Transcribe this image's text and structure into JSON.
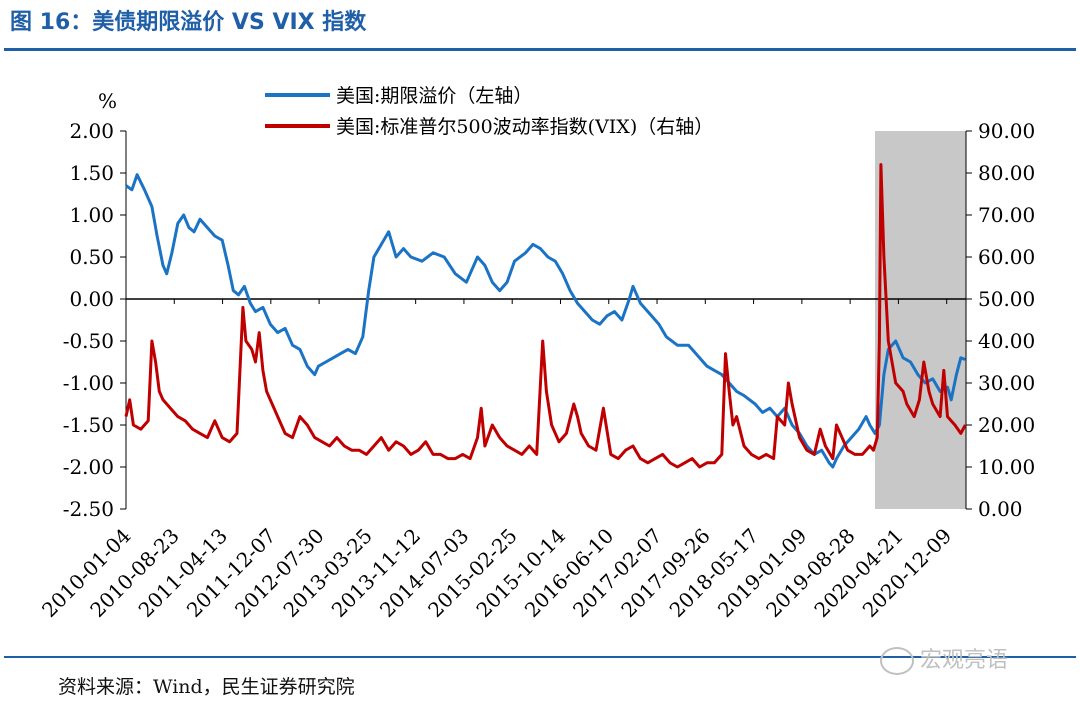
{
  "figure": {
    "title": "图 16：美债期限溢价 VS VIX 指数",
    "source": "资料来源：Wind，民生证券研究院",
    "watermark": "宏观亮语"
  },
  "chart_data": {
    "type": "line",
    "unit_label": "%",
    "y_left": {
      "min": -2.5,
      "max": 2.0,
      "ticks": [
        "2.00",
        "1.50",
        "1.00",
        "0.50",
        "0.00",
        "-0.50",
        "-1.00",
        "-1.50",
        "-2.00",
        "-2.50"
      ]
    },
    "y_right": {
      "min": 0,
      "max": 90,
      "ticks": [
        "90.00",
        "80.00",
        "70.00",
        "60.00",
        "50.00",
        "40.00",
        "30.00",
        "20.00",
        "10.00",
        "0.00"
      ]
    },
    "x_tick_labels": [
      "2010-01-04",
      "2010-08-23",
      "2011-04-13",
      "2011-12-07",
      "2012-07-30",
      "2013-03-25",
      "2013-11-12",
      "2014-07-03",
      "2015-02-25",
      "2015-10-14",
      "2016-06-10",
      "2017-02-07",
      "2017-09-26",
      "2018-05-17",
      "2019-01-09",
      "2019-08-28",
      "2020-04-21",
      "2020-12-09"
    ],
    "x_range": [
      2010.0,
      2021.35
    ],
    "shaded_region": [
      2020.12,
      2021.35
    ],
    "series": [
      {
        "name": "美国:期限溢价（左轴）",
        "axis": "left",
        "color": "#1a73c4",
        "points": [
          [
            2010.0,
            1.35
          ],
          [
            2010.08,
            1.3
          ],
          [
            2010.15,
            1.48
          ],
          [
            2010.25,
            1.3
          ],
          [
            2010.35,
            1.1
          ],
          [
            2010.42,
            0.75
          ],
          [
            2010.5,
            0.4
          ],
          [
            2010.55,
            0.3
          ],
          [
            2010.62,
            0.55
          ],
          [
            2010.7,
            0.9
          ],
          [
            2010.78,
            1.0
          ],
          [
            2010.85,
            0.85
          ],
          [
            2010.92,
            0.8
          ],
          [
            2011.0,
            0.95
          ],
          [
            2011.1,
            0.85
          ],
          [
            2011.2,
            0.75
          ],
          [
            2011.3,
            0.7
          ],
          [
            2011.38,
            0.4
          ],
          [
            2011.45,
            0.1
          ],
          [
            2011.52,
            0.05
          ],
          [
            2011.6,
            0.15
          ],
          [
            2011.68,
            -0.05
          ],
          [
            2011.75,
            -0.15
          ],
          [
            2011.85,
            -0.1
          ],
          [
            2011.95,
            -0.3
          ],
          [
            2012.05,
            -0.4
          ],
          [
            2012.15,
            -0.35
          ],
          [
            2012.25,
            -0.55
          ],
          [
            2012.35,
            -0.6
          ],
          [
            2012.45,
            -0.8
          ],
          [
            2012.55,
            -0.9
          ],
          [
            2012.6,
            -0.8
          ],
          [
            2012.7,
            -0.75
          ],
          [
            2012.8,
            -0.7
          ],
          [
            2012.9,
            -0.65
          ],
          [
            2013.0,
            -0.6
          ],
          [
            2013.1,
            -0.65
          ],
          [
            2013.2,
            -0.45
          ],
          [
            2013.28,
            0.1
          ],
          [
            2013.35,
            0.5
          ],
          [
            2013.45,
            0.65
          ],
          [
            2013.55,
            0.8
          ],
          [
            2013.65,
            0.5
          ],
          [
            2013.75,
            0.6
          ],
          [
            2013.85,
            0.5
          ],
          [
            2014.0,
            0.45
          ],
          [
            2014.15,
            0.55
          ],
          [
            2014.3,
            0.5
          ],
          [
            2014.45,
            0.3
          ],
          [
            2014.6,
            0.2
          ],
          [
            2014.75,
            0.5
          ],
          [
            2014.85,
            0.4
          ],
          [
            2014.95,
            0.2
          ],
          [
            2015.05,
            0.1
          ],
          [
            2015.15,
            0.2
          ],
          [
            2015.25,
            0.45
          ],
          [
            2015.4,
            0.55
          ],
          [
            2015.5,
            0.65
          ],
          [
            2015.6,
            0.6
          ],
          [
            2015.7,
            0.5
          ],
          [
            2015.8,
            0.45
          ],
          [
            2015.9,
            0.3
          ],
          [
            2016.0,
            0.1
          ],
          [
            2016.1,
            -0.05
          ],
          [
            2016.2,
            -0.15
          ],
          [
            2016.3,
            -0.25
          ],
          [
            2016.4,
            -0.3
          ],
          [
            2016.5,
            -0.2
          ],
          [
            2016.6,
            -0.15
          ],
          [
            2016.7,
            -0.25
          ],
          [
            2016.8,
            0.0
          ],
          [
            2016.85,
            0.15
          ],
          [
            2016.95,
            -0.05
          ],
          [
            2017.1,
            -0.2
          ],
          [
            2017.2,
            -0.3
          ],
          [
            2017.3,
            -0.45
          ],
          [
            2017.45,
            -0.55
          ],
          [
            2017.6,
            -0.55
          ],
          [
            2017.7,
            -0.65
          ],
          [
            2017.85,
            -0.8
          ],
          [
            2017.95,
            -0.85
          ],
          [
            2018.05,
            -0.9
          ],
          [
            2018.15,
            -1.0
          ],
          [
            2018.25,
            -1.1
          ],
          [
            2018.35,
            -1.15
          ],
          [
            2018.5,
            -1.25
          ],
          [
            2018.6,
            -1.35
          ],
          [
            2018.7,
            -1.3
          ],
          [
            2018.8,
            -1.4
          ],
          [
            2018.9,
            -1.3
          ],
          [
            2019.0,
            -1.5
          ],
          [
            2019.1,
            -1.6
          ],
          [
            2019.2,
            -1.75
          ],
          [
            2019.3,
            -1.85
          ],
          [
            2019.4,
            -1.8
          ],
          [
            2019.5,
            -1.95
          ],
          [
            2019.55,
            -2.0
          ],
          [
            2019.6,
            -1.9
          ],
          [
            2019.7,
            -1.75
          ],
          [
            2019.8,
            -1.65
          ],
          [
            2019.9,
            -1.55
          ],
          [
            2020.0,
            -1.4
          ],
          [
            2020.05,
            -1.5
          ],
          [
            2020.12,
            -1.6
          ],
          [
            2020.18,
            -1.5
          ],
          [
            2020.24,
            -0.9
          ],
          [
            2020.3,
            -0.6
          ],
          [
            2020.4,
            -0.5
          ],
          [
            2020.5,
            -0.7
          ],
          [
            2020.6,
            -0.75
          ],
          [
            2020.7,
            -0.9
          ],
          [
            2020.8,
            -1.0
          ],
          [
            2020.9,
            -0.95
          ],
          [
            2021.0,
            -1.1
          ],
          [
            2021.1,
            -1.05
          ],
          [
            2021.15,
            -1.2
          ],
          [
            2021.22,
            -0.9
          ],
          [
            2021.28,
            -0.7
          ],
          [
            2021.34,
            -0.72
          ]
        ]
      },
      {
        "name": "美国:标准普尔500波动率指数(VIX)（右轴）",
        "axis": "right",
        "color": "#c00000",
        "points": [
          [
            2010.0,
            22
          ],
          [
            2010.05,
            26
          ],
          [
            2010.1,
            20
          ],
          [
            2010.2,
            19
          ],
          [
            2010.3,
            21
          ],
          [
            2010.35,
            40
          ],
          [
            2010.4,
            35
          ],
          [
            2010.45,
            28
          ],
          [
            2010.5,
            26
          ],
          [
            2010.6,
            24
          ],
          [
            2010.7,
            22
          ],
          [
            2010.8,
            21
          ],
          [
            2010.9,
            19
          ],
          [
            2011.0,
            18
          ],
          [
            2011.1,
            17
          ],
          [
            2011.2,
            21
          ],
          [
            2011.3,
            17
          ],
          [
            2011.4,
            16
          ],
          [
            2011.5,
            18
          ],
          [
            2011.58,
            48
          ],
          [
            2011.62,
            40
          ],
          [
            2011.7,
            38
          ],
          [
            2011.75,
            35
          ],
          [
            2011.8,
            42
          ],
          [
            2011.85,
            33
          ],
          [
            2011.9,
            28
          ],
          [
            2011.95,
            26
          ],
          [
            2012.05,
            22
          ],
          [
            2012.15,
            18
          ],
          [
            2012.25,
            17
          ],
          [
            2012.35,
            22
          ],
          [
            2012.45,
            20
          ],
          [
            2012.55,
            17
          ],
          [
            2012.65,
            16
          ],
          [
            2012.75,
            15
          ],
          [
            2012.85,
            17
          ],
          [
            2012.95,
            15
          ],
          [
            2013.05,
            14
          ],
          [
            2013.15,
            14
          ],
          [
            2013.25,
            13
          ],
          [
            2013.35,
            15
          ],
          [
            2013.45,
            17
          ],
          [
            2013.55,
            14
          ],
          [
            2013.65,
            16
          ],
          [
            2013.75,
            15
          ],
          [
            2013.85,
            13
          ],
          [
            2013.95,
            14
          ],
          [
            2014.05,
            16
          ],
          [
            2014.15,
            13
          ],
          [
            2014.25,
            13
          ],
          [
            2014.35,
            12
          ],
          [
            2014.45,
            12
          ],
          [
            2014.55,
            13
          ],
          [
            2014.65,
            12
          ],
          [
            2014.75,
            17
          ],
          [
            2014.8,
            24
          ],
          [
            2014.85,
            15
          ],
          [
            2014.95,
            20
          ],
          [
            2015.05,
            17
          ],
          [
            2015.15,
            15
          ],
          [
            2015.25,
            14
          ],
          [
            2015.35,
            13
          ],
          [
            2015.45,
            15
          ],
          [
            2015.55,
            13
          ],
          [
            2015.63,
            40
          ],
          [
            2015.68,
            28
          ],
          [
            2015.75,
            20
          ],
          [
            2015.85,
            16
          ],
          [
            2015.95,
            18
          ],
          [
            2016.05,
            25
          ],
          [
            2016.1,
            22
          ],
          [
            2016.15,
            18
          ],
          [
            2016.25,
            15
          ],
          [
            2016.35,
            14
          ],
          [
            2016.45,
            24
          ],
          [
            2016.55,
            13
          ],
          [
            2016.65,
            12
          ],
          [
            2016.75,
            14
          ],
          [
            2016.85,
            15
          ],
          [
            2016.95,
            12
          ],
          [
            2017.05,
            11
          ],
          [
            2017.15,
            12
          ],
          [
            2017.25,
            13
          ],
          [
            2017.35,
            11
          ],
          [
            2017.45,
            10
          ],
          [
            2017.55,
            11
          ],
          [
            2017.65,
            12
          ],
          [
            2017.75,
            10
          ],
          [
            2017.85,
            11
          ],
          [
            2017.95,
            11
          ],
          [
            2018.05,
            13
          ],
          [
            2018.1,
            37
          ],
          [
            2018.15,
            28
          ],
          [
            2018.2,
            20
          ],
          [
            2018.25,
            22
          ],
          [
            2018.35,
            15
          ],
          [
            2018.45,
            13
          ],
          [
            2018.55,
            12
          ],
          [
            2018.65,
            13
          ],
          [
            2018.75,
            12
          ],
          [
            2018.8,
            22
          ],
          [
            2018.9,
            20
          ],
          [
            2018.95,
            30
          ],
          [
            2019.0,
            25
          ],
          [
            2019.1,
            17
          ],
          [
            2019.2,
            14
          ],
          [
            2019.3,
            13
          ],
          [
            2019.38,
            19
          ],
          [
            2019.45,
            15
          ],
          [
            2019.55,
            12
          ],
          [
            2019.6,
            20
          ],
          [
            2019.65,
            18
          ],
          [
            2019.75,
            14
          ],
          [
            2019.85,
            13
          ],
          [
            2019.95,
            13
          ],
          [
            2020.05,
            15
          ],
          [
            2020.1,
            14
          ],
          [
            2020.15,
            17
          ],
          [
            2020.18,
            40
          ],
          [
            2020.2,
            82
          ],
          [
            2020.24,
            60
          ],
          [
            2020.3,
            40
          ],
          [
            2020.4,
            30
          ],
          [
            2020.5,
            28
          ],
          [
            2020.55,
            25
          ],
          [
            2020.65,
            22
          ],
          [
            2020.72,
            26
          ],
          [
            2020.78,
            35
          ],
          [
            2020.85,
            28
          ],
          [
            2020.9,
            25
          ],
          [
            2021.0,
            22
          ],
          [
            2021.05,
            33
          ],
          [
            2021.1,
            22
          ],
          [
            2021.2,
            20
          ],
          [
            2021.28,
            18
          ],
          [
            2021.34,
            20
          ]
        ]
      }
    ]
  },
  "legend_order": "top-center"
}
